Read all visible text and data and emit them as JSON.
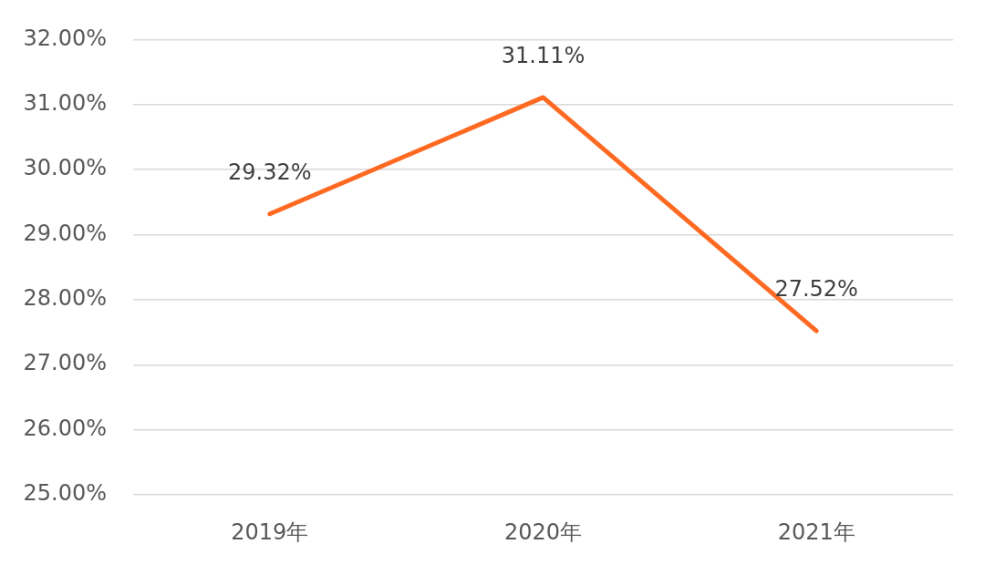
{
  "chart_data": {
    "type": "line",
    "categories": [
      "2019年",
      "2020年",
      "2021年"
    ],
    "series": [
      {
        "color": "#ff6a22",
        "values": [
          29.32,
          31.11,
          27.52
        ],
        "value_labels": [
          "29.32%",
          "31.11%",
          "27.52%"
        ]
      }
    ],
    "ylim": [
      25,
      32
    ],
    "yticks": [
      {
        "value": 25,
        "label": "25.00%"
      },
      {
        "value": 26,
        "label": "26.00%"
      },
      {
        "value": 27,
        "label": "27.00%"
      },
      {
        "value": 28,
        "label": "28.00%"
      },
      {
        "value": 29,
        "label": "29.00%"
      },
      {
        "value": 30,
        "label": "30.00%"
      },
      {
        "value": 31,
        "label": "31.00%"
      },
      {
        "value": 32,
        "label": "32.00%"
      }
    ],
    "grid": "y"
  }
}
